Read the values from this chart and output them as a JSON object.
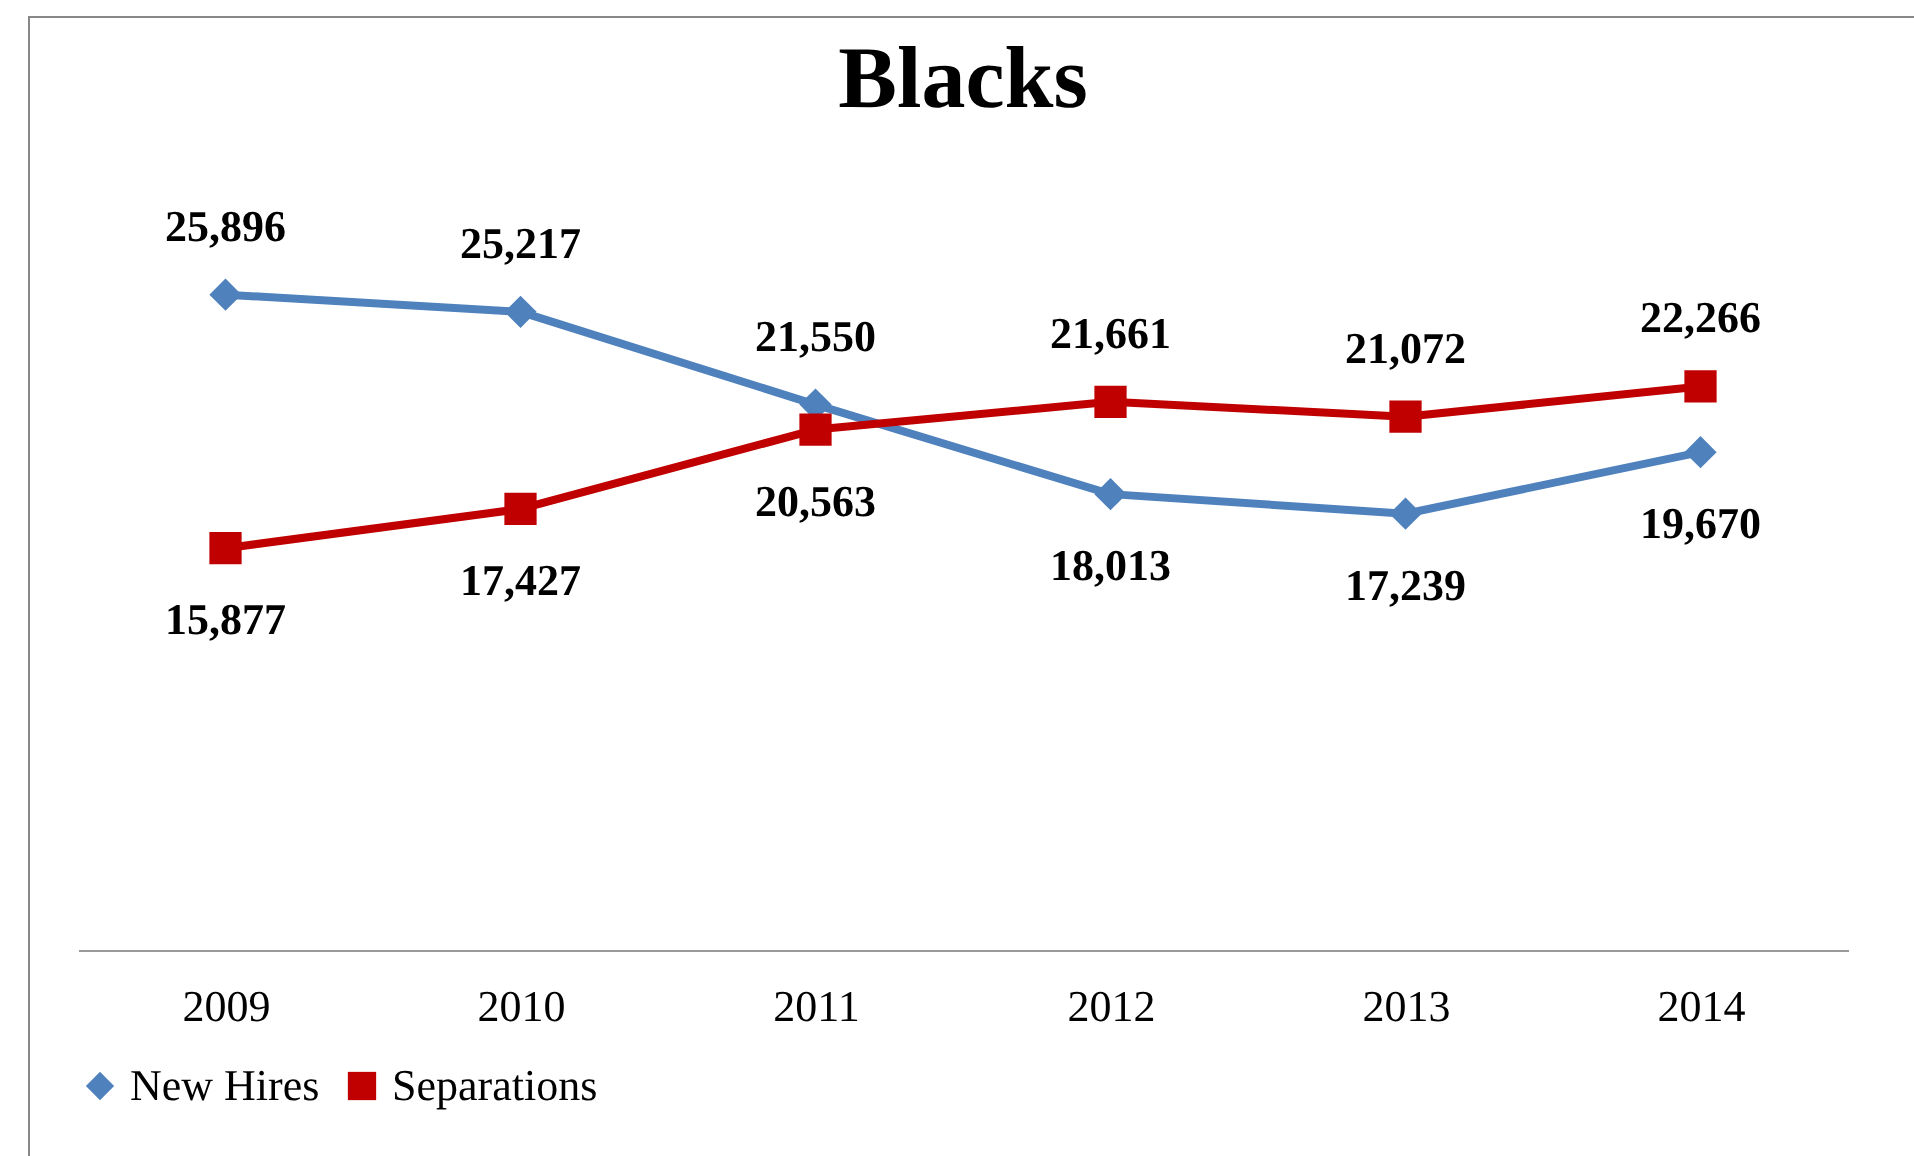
{
  "chart_data": {
    "type": "line",
    "title": "Blacks",
    "categories": [
      "2009",
      "2010",
      "2011",
      "2012",
      "2013",
      "2014"
    ],
    "series": [
      {
        "name": "New Hires",
        "color": "#4f81bd",
        "marker": "diamond",
        "values": [
          25896,
          25217,
          21550,
          18013,
          17239,
          19670
        ],
        "value_labels": [
          "25,896",
          "25,217",
          "21,550",
          "18,013",
          "17,239",
          "19,670"
        ]
      },
      {
        "name": "Separations",
        "color": "#c00000",
        "marker": "square",
        "values": [
          15877,
          17427,
          20563,
          21661,
          21072,
          22266
        ],
        "value_labels": [
          "15,877",
          "17,427",
          "20,563",
          "21,661",
          "21,072",
          "22,266"
        ]
      }
    ],
    "legend": "bottom",
    "grid": false,
    "tick_labels": "x",
    "line_style": "solid"
  }
}
